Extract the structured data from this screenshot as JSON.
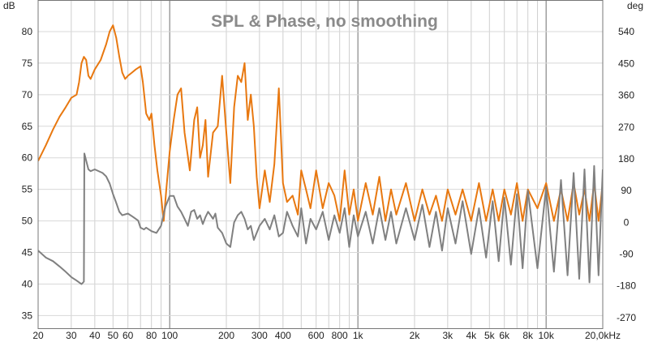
{
  "chart_data": {
    "type": "line",
    "title": "SPL & Phase, no smoothing",
    "y_unit_left": "dB",
    "y_unit_right": "deg",
    "x_scale": "log",
    "xlim": [
      20,
      20000
    ],
    "ylim_left": [
      33,
      85
    ],
    "ylim_right": [
      -300,
      630
    ],
    "grid": true,
    "x_ticks": [
      {
        "v": 20,
        "label": "20"
      },
      {
        "v": 30,
        "label": "30"
      },
      {
        "v": 40,
        "label": "40"
      },
      {
        "v": 50,
        "label": "50"
      },
      {
        "v": 60,
        "label": "60"
      },
      {
        "v": 80,
        "label": "80"
      },
      {
        "v": 100,
        "label": "100"
      },
      {
        "v": 200,
        "label": "200"
      },
      {
        "v": 300,
        "label": "300"
      },
      {
        "v": 400,
        "label": "400"
      },
      {
        "v": 600,
        "label": "600"
      },
      {
        "v": 800,
        "label": "800"
      },
      {
        "v": 1000,
        "label": "1k"
      },
      {
        "v": 2000,
        "label": "2k"
      },
      {
        "v": 3000,
        "label": "3k"
      },
      {
        "v": 4000,
        "label": "4k"
      },
      {
        "v": 5000,
        "label": "5k"
      },
      {
        "v": 6000,
        "label": "6k"
      },
      {
        "v": 8000,
        "label": "8k"
      },
      {
        "v": 10000,
        "label": "10k"
      },
      {
        "v": 20000,
        "label": "20,0kHz"
      }
    ],
    "y_ticks_left": [
      35,
      40,
      45,
      50,
      55,
      60,
      65,
      70,
      75,
      80
    ],
    "y_ticks_right": [
      -270,
      -180,
      -90,
      0,
      90,
      180,
      270,
      360,
      450,
      540
    ],
    "series": [
      {
        "axis": "left",
        "color": "#e87810",
        "points": [
          [
            20,
            59.5
          ],
          [
            22,
            62
          ],
          [
            24,
            64.5
          ],
          [
            26,
            66.5
          ],
          [
            28,
            68
          ],
          [
            30,
            69.5
          ],
          [
            32,
            70
          ],
          [
            33,
            72
          ],
          [
            34,
            75
          ],
          [
            35,
            76
          ],
          [
            36,
            75.5
          ],
          [
            37,
            73
          ],
          [
            38,
            72.5
          ],
          [
            40,
            74
          ],
          [
            43,
            75.5
          ],
          [
            46,
            78
          ],
          [
            48,
            80
          ],
          [
            50,
            81
          ],
          [
            52,
            79
          ],
          [
            54,
            76
          ],
          [
            56,
            73.5
          ],
          [
            58,
            72.5
          ],
          [
            60,
            73
          ],
          [
            63,
            73.5
          ],
          [
            66,
            74
          ],
          [
            70,
            74.5
          ],
          [
            72,
            72
          ],
          [
            75,
            67
          ],
          [
            78,
            66
          ],
          [
            80,
            67
          ],
          [
            83,
            62
          ],
          [
            86,
            58
          ],
          [
            90,
            54
          ],
          [
            93,
            50
          ],
          [
            96,
            55
          ],
          [
            100,
            61
          ],
          [
            105,
            66
          ],
          [
            110,
            70
          ],
          [
            115,
            71
          ],
          [
            120,
            64
          ],
          [
            128,
            58
          ],
          [
            135,
            66
          ],
          [
            140,
            68
          ],
          [
            145,
            60
          ],
          [
            150,
            62
          ],
          [
            155,
            66
          ],
          [
            160,
            57
          ],
          [
            170,
            64
          ],
          [
            180,
            65
          ],
          [
            190,
            73
          ],
          [
            200,
            64
          ],
          [
            210,
            56
          ],
          [
            220,
            68
          ],
          [
            230,
            73
          ],
          [
            240,
            72
          ],
          [
            250,
            75
          ],
          [
            260,
            66
          ],
          [
            270,
            70
          ],
          [
            280,
            65
          ],
          [
            290,
            57
          ],
          [
            300,
            52
          ],
          [
            320,
            58
          ],
          [
            340,
            53
          ],
          [
            360,
            59
          ],
          [
            380,
            71
          ],
          [
            400,
            56
          ],
          [
            420,
            53
          ],
          [
            450,
            54
          ],
          [
            480,
            51
          ],
          [
            500,
            58
          ],
          [
            530,
            55
          ],
          [
            560,
            52
          ],
          [
            600,
            58
          ],
          [
            650,
            52
          ],
          [
            700,
            56
          ],
          [
            750,
            54
          ],
          [
            800,
            50
          ],
          [
            850,
            58
          ],
          [
            900,
            51
          ],
          [
            950,
            55
          ],
          [
            1000,
            50
          ],
          [
            1100,
            56
          ],
          [
            1200,
            51
          ],
          [
            1300,
            57
          ],
          [
            1400,
            50
          ],
          [
            1500,
            55
          ],
          [
            1600,
            51
          ],
          [
            1800,
            56
          ],
          [
            2000,
            50
          ],
          [
            2200,
            55
          ],
          [
            2400,
            51
          ],
          [
            2600,
            54
          ],
          [
            2800,
            50
          ],
          [
            3000,
            55
          ],
          [
            3300,
            51
          ],
          [
            3600,
            55
          ],
          [
            4000,
            50
          ],
          [
            4400,
            56
          ],
          [
            4800,
            50
          ],
          [
            5200,
            55
          ],
          [
            5600,
            50
          ],
          [
            6000,
            55
          ],
          [
            6500,
            51
          ],
          [
            7000,
            56
          ],
          [
            7500,
            50
          ],
          [
            8000,
            55
          ],
          [
            9000,
            52
          ],
          [
            10000,
            56
          ],
          [
            11000,
            50
          ],
          [
            12000,
            55
          ],
          [
            13000,
            50
          ],
          [
            14000,
            56
          ],
          [
            15000,
            51
          ],
          [
            16000,
            55
          ],
          [
            17000,
            50
          ],
          [
            18000,
            56
          ],
          [
            19000,
            50
          ],
          [
            20000,
            56
          ]
        ]
      },
      {
        "axis": "right",
        "color": "#808080",
        "points": [
          [
            20,
            -80
          ],
          [
            22,
            -100
          ],
          [
            24,
            -110
          ],
          [
            26,
            -125
          ],
          [
            28,
            -140
          ],
          [
            30,
            -155
          ],
          [
            32,
            -165
          ],
          [
            33,
            -170
          ],
          [
            34,
            -175
          ],
          [
            35,
            -168
          ],
          [
            35.2,
            195
          ],
          [
            36,
            175
          ],
          [
            37,
            150
          ],
          [
            38,
            145
          ],
          [
            40,
            150
          ],
          [
            44,
            140
          ],
          [
            46,
            130
          ],
          [
            48,
            110
          ],
          [
            50,
            80
          ],
          [
            52,
            55
          ],
          [
            54,
            30
          ],
          [
            56,
            20
          ],
          [
            60,
            25
          ],
          [
            64,
            15
          ],
          [
            68,
            5
          ],
          [
            70,
            -15
          ],
          [
            73,
            -20
          ],
          [
            75,
            -15
          ],
          [
            80,
            -25
          ],
          [
            85,
            -30
          ],
          [
            90,
            -10
          ],
          [
            95,
            45
          ],
          [
            100,
            75
          ],
          [
            105,
            75
          ],
          [
            110,
            45
          ],
          [
            115,
            30
          ],
          [
            120,
            10
          ],
          [
            125,
            -10
          ],
          [
            130,
            30
          ],
          [
            135,
            35
          ],
          [
            140,
            10
          ],
          [
            145,
            20
          ],
          [
            150,
            -5
          ],
          [
            155,
            15
          ],
          [
            160,
            30
          ],
          [
            165,
            20
          ],
          [
            170,
            10
          ],
          [
            175,
            25
          ],
          [
            180,
            -15
          ],
          [
            190,
            -30
          ],
          [
            200,
            -60
          ],
          [
            210,
            -70
          ],
          [
            220,
            0
          ],
          [
            230,
            20
          ],
          [
            240,
            30
          ],
          [
            250,
            10
          ],
          [
            260,
            -20
          ],
          [
            270,
            -10
          ],
          [
            280,
            -50
          ],
          [
            290,
            -30
          ],
          [
            300,
            -10
          ],
          [
            320,
            10
          ],
          [
            340,
            -20
          ],
          [
            360,
            20
          ],
          [
            380,
            -40
          ],
          [
            400,
            -30
          ],
          [
            420,
            30
          ],
          [
            450,
            -10
          ],
          [
            480,
            -40
          ],
          [
            500,
            40
          ],
          [
            530,
            -60
          ],
          [
            560,
            10
          ],
          [
            600,
            -20
          ],
          [
            650,
            30
          ],
          [
            700,
            -50
          ],
          [
            750,
            20
          ],
          [
            800,
            -30
          ],
          [
            850,
            40
          ],
          [
            900,
            -70
          ],
          [
            950,
            20
          ],
          [
            1000,
            -40
          ],
          [
            1100,
            30
          ],
          [
            1200,
            -60
          ],
          [
            1300,
            40
          ],
          [
            1400,
            -50
          ],
          [
            1500,
            30
          ],
          [
            1600,
            -60
          ],
          [
            1800,
            40
          ],
          [
            2000,
            -50
          ],
          [
            2200,
            50
          ],
          [
            2400,
            -70
          ],
          [
            2600,
            30
          ],
          [
            2800,
            -80
          ],
          [
            3000,
            40
          ],
          [
            3300,
            -60
          ],
          [
            3600,
            60
          ],
          [
            4000,
            -90
          ],
          [
            4400,
            40
          ],
          [
            4800,
            -100
          ],
          [
            5200,
            60
          ],
          [
            5600,
            -110
          ],
          [
            6000,
            70
          ],
          [
            6500,
            -120
          ],
          [
            7000,
            80
          ],
          [
            7500,
            -130
          ],
          [
            8000,
            90
          ],
          [
            9000,
            -130
          ],
          [
            10000,
            100
          ],
          [
            11000,
            -140
          ],
          [
            12000,
            120
          ],
          [
            13000,
            -150
          ],
          [
            14000,
            140
          ],
          [
            15000,
            -160
          ],
          [
            16000,
            150
          ],
          [
            17000,
            -170
          ],
          [
            18000,
            160
          ],
          [
            19000,
            -150
          ],
          [
            20000,
            150
          ]
        ]
      }
    ]
  }
}
